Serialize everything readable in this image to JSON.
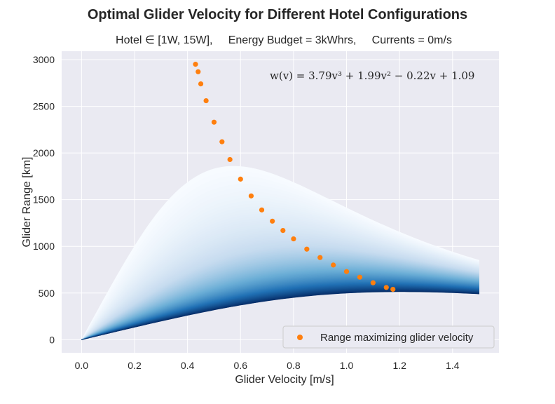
{
  "chart_data": {
    "type": "scatter",
    "title": "Optimal Glider Velocity for Different Hotel Configurations",
    "subtitle": "Hotel ∈ [1W, 15W],     Energy Budget = 3kWhrs,     Currents = 0m/s",
    "xlabel": "Glider Velocity [m/s]",
    "ylabel": "Glider Range [km]",
    "xlim": [
      -0.075,
      1.575
    ],
    "ylim": [
      -140,
      3090
    ],
    "xticks": [
      0.0,
      0.2,
      0.4,
      0.6,
      0.8,
      1.0,
      1.2,
      1.4
    ],
    "xtick_labels": [
      "0.0",
      "0.2",
      "0.4",
      "0.6",
      "0.8",
      "1.0",
      "1.2",
      "1.4"
    ],
    "yticks": [
      0,
      500,
      1000,
      1500,
      2000,
      2500,
      3000
    ],
    "ytick_labels": [
      "0",
      "500",
      "1000",
      "1500",
      "2000",
      "2500",
      "3000"
    ],
    "grid": true,
    "legend_position": "lower-right",
    "annotation": "w(v) = 3.79v³ + 1.99v² − 0.22v + 1.09",
    "power_model": {
      "a3": 3.79,
      "a2": 1.99,
      "a1": -0.22,
      "a0": 1.09
    },
    "energy_budget_kwh": 3,
    "hotel_range_w": [
      1,
      15
    ],
    "currents_ms": 0,
    "velocity_range": [
      0.0,
      1.5
    ],
    "colormap": "Blues",
    "series": [
      {
        "name": "Range maximizing glider velocity",
        "color": "#ff7f0e",
        "points": [
          {
            "x": 0.43,
            "y": 2950
          },
          {
            "x": 0.44,
            "y": 2870
          },
          {
            "x": 0.45,
            "y": 2740
          },
          {
            "x": 0.47,
            "y": 2560
          },
          {
            "x": 0.5,
            "y": 2330
          },
          {
            "x": 0.53,
            "y": 2120
          },
          {
            "x": 0.56,
            "y": 1930
          },
          {
            "x": 0.6,
            "y": 1720
          },
          {
            "x": 0.64,
            "y": 1540
          },
          {
            "x": 0.68,
            "y": 1390
          },
          {
            "x": 0.72,
            "y": 1270
          },
          {
            "x": 0.76,
            "y": 1170
          },
          {
            "x": 0.8,
            "y": 1080
          },
          {
            "x": 0.85,
            "y": 970
          },
          {
            "x": 0.9,
            "y": 880
          },
          {
            "x": 0.95,
            "y": 800
          },
          {
            "x": 1.0,
            "y": 730
          },
          {
            "x": 1.05,
            "y": 670
          },
          {
            "x": 1.1,
            "y": 610
          },
          {
            "x": 1.15,
            "y": 560
          },
          {
            "x": 1.175,
            "y": 540
          }
        ]
      }
    ]
  }
}
